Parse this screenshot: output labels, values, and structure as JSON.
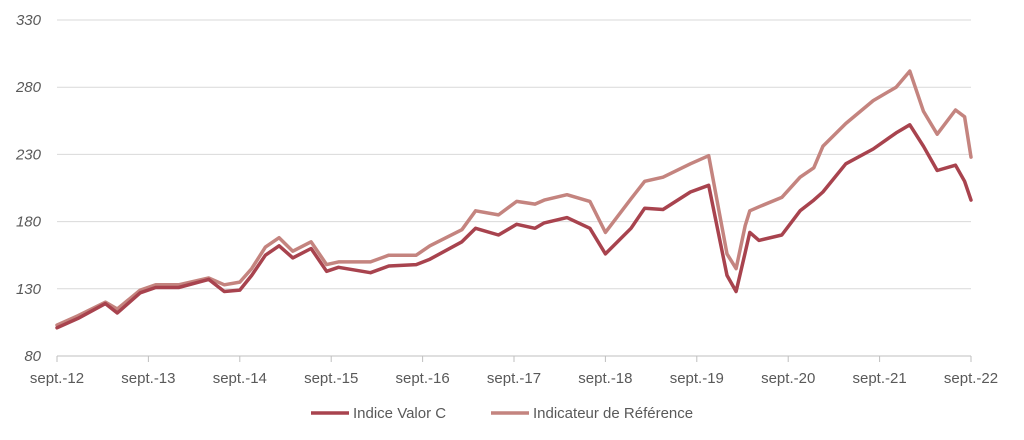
{
  "chart_data": {
    "type": "line",
    "title": "",
    "xlabel": "",
    "ylabel": "",
    "ylim": [
      80,
      330
    ],
    "y_ticks": [
      "80",
      "130",
      "180",
      "230",
      "280",
      "330"
    ],
    "x_ticks": [
      "sept.-12",
      "sept.-13",
      "sept.-14",
      "sept.-15",
      "sept.-16",
      "sept.-17",
      "sept.-18",
      "sept.-19",
      "sept.-20",
      "sept.-21",
      "sept.-22"
    ],
    "grid": "horizontal",
    "legend_position": "bottom",
    "x": [
      2012.67,
      2012.9,
      2013.2,
      2013.33,
      2013.58,
      2013.75,
      2014.0,
      2014.33,
      2014.5,
      2014.67,
      2014.8,
      2014.95,
      2015.1,
      2015.25,
      2015.45,
      2015.62,
      2015.75,
      2016.1,
      2016.3,
      2016.6,
      2016.75,
      2017.1,
      2017.25,
      2017.5,
      2017.7,
      2017.9,
      2018.0,
      2018.25,
      2018.5,
      2018.67,
      2018.95,
      2019.1,
      2019.3,
      2019.6,
      2019.8,
      2020.0,
      2020.1,
      2020.2,
      2020.25,
      2020.35,
      2020.6,
      2020.8,
      2020.95,
      2021.05,
      2021.3,
      2021.6,
      2021.85,
      2022.0,
      2022.15,
      2022.3,
      2022.5,
      2022.6,
      2022.67
    ],
    "series": [
      {
        "name": "Indice Valor C",
        "color": "#a8434e",
        "values": [
          101,
          108,
          119,
          112,
          127,
          131,
          131,
          137,
          128,
          129,
          140,
          155,
          162,
          153,
          160,
          143,
          146,
          142,
          147,
          148,
          152,
          165,
          175,
          170,
          178,
          175,
          179,
          183,
          175,
          156,
          175,
          190,
          189,
          202,
          207,
          140,
          128,
          157,
          172,
          166,
          170,
          188,
          196,
          202,
          223,
          234,
          246,
          252,
          236,
          218,
          222,
          210,
          196
        ]
      },
      {
        "name": "Indicateur de Référence",
        "color": "#c4847f",
        "values": [
          103,
          110,
          120,
          115,
          129,
          133,
          133,
          138,
          133,
          135,
          145,
          161,
          168,
          158,
          165,
          148,
          150,
          150,
          155,
          155,
          162,
          174,
          188,
          185,
          195,
          193,
          196,
          200,
          195,
          172,
          197,
          210,
          213,
          223,
          229,
          156,
          145,
          177,
          188,
          191,
          198,
          213,
          220,
          236,
          253,
          270,
          280,
          292,
          262,
          245,
          263,
          258,
          228
        ]
      }
    ]
  }
}
